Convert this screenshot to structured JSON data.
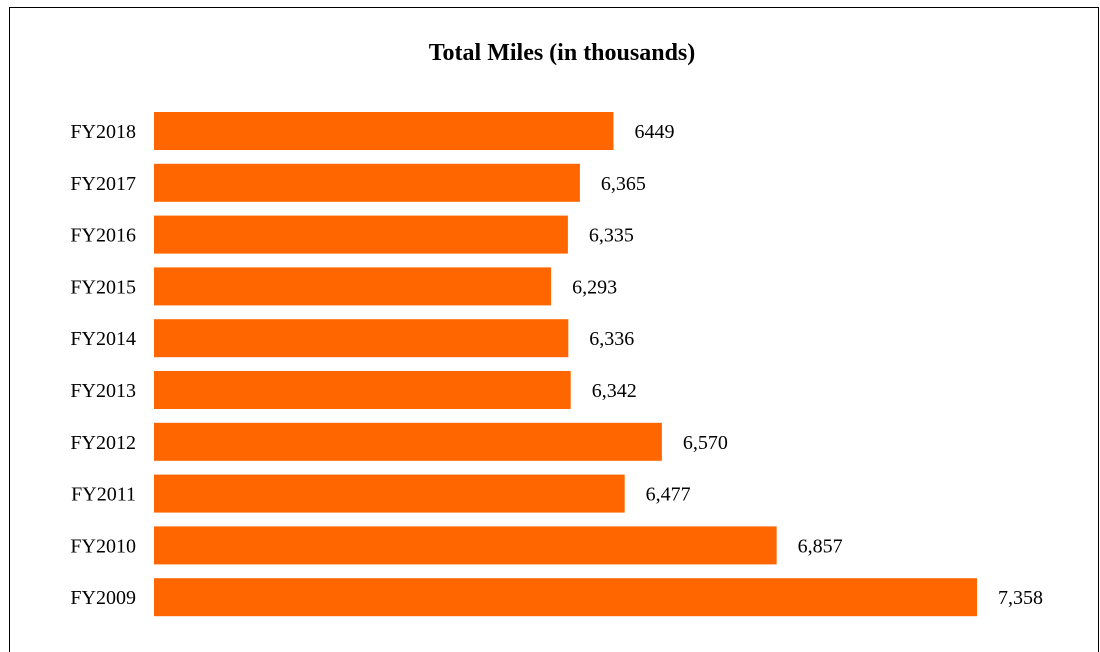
{
  "chart_data": {
    "type": "bar",
    "orientation": "horizontal",
    "title": "Total Miles (in thousands)",
    "xlabel": "",
    "ylabel": "",
    "categories": [
      "FY2018",
      "FY2017",
      "FY2016",
      "FY2015",
      "FY2014",
      "FY2013",
      "FY2012",
      "FY2011",
      "FY2010",
      "FY2009"
    ],
    "values": [
      6449,
      6365,
      6335,
      6293,
      6336,
      6342,
      6570,
      6477,
      6857,
      7358
    ],
    "value_labels": [
      "6449",
      "6,365",
      "6,335",
      "6,293",
      "6,336",
      "6,342",
      "6,570",
      "6,477",
      "6,857",
      "7,358"
    ],
    "bar_color": "#FF6600",
    "grid": false,
    "legend": "none"
  }
}
